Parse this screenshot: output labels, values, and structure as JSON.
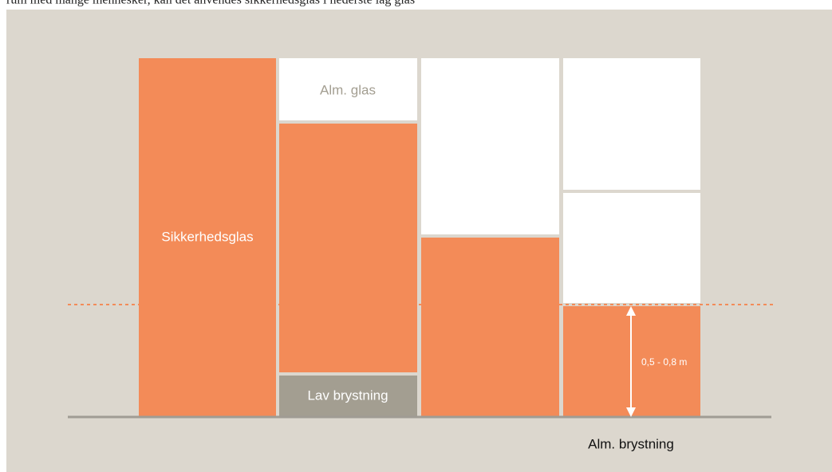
{
  "intro_text": "rum med mange mennesker, kan det anvendes sikkerhedsglas i nederste lag glas",
  "labels": {
    "safety_glass": "Sikkerhedsglas",
    "ordinary_glass": "Alm. glas",
    "low_parapet": "Lav brystning",
    "height_range": "0,5 - 0,8 m",
    "ordinary_parapet": "Alm. brystning"
  }
}
